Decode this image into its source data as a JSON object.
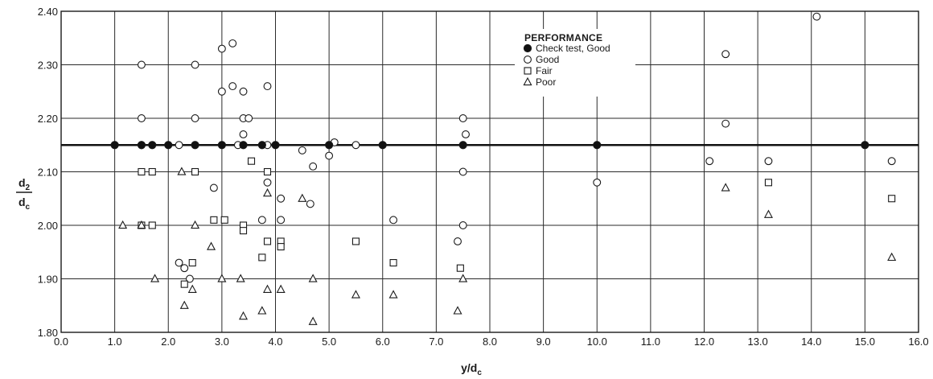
{
  "chart_data": {
    "type": "scatter",
    "xlabel": "y/d",
    "xlabel_sub": "c",
    "ylabel_top": "d",
    "ylabel_top_sub": "2",
    "ylabel_bottom": "d",
    "ylabel_bottom_sub": "c",
    "xlim": [
      0,
      16
    ],
    "ylim": [
      1.8,
      2.4
    ],
    "xticks": [
      "0.0",
      "1.0",
      "2.0",
      "3.0",
      "4.0",
      "5.0",
      "6.0",
      "7.0",
      "8.0",
      "9.0",
      "10.0",
      "11.0",
      "12.0",
      "13.0",
      "14.0",
      "15.0",
      "16.0"
    ],
    "yticks": [
      "1.80",
      "1.90",
      "2.00",
      "2.10",
      "2.20",
      "2.30",
      "2.40"
    ],
    "grid": true,
    "reference_line_y": 2.15,
    "legend": {
      "title": "PERFORMANCE",
      "placement": "top-center-right",
      "entries": [
        "Check test, Good",
        "Good",
        "Fair",
        "Poor"
      ]
    },
    "series": [
      {
        "name": "Check test, Good",
        "marker": "filled-circle",
        "points": [
          [
            1.0,
            2.15
          ],
          [
            1.5,
            2.15
          ],
          [
            1.7,
            2.15
          ],
          [
            2.0,
            2.15
          ],
          [
            2.5,
            2.15
          ],
          [
            3.0,
            2.15
          ],
          [
            3.4,
            2.15
          ],
          [
            3.75,
            2.15
          ],
          [
            4.0,
            2.15
          ],
          [
            5.0,
            2.15
          ],
          [
            6.0,
            2.15
          ],
          [
            7.5,
            2.15
          ],
          [
            10.0,
            2.15
          ],
          [
            15.0,
            2.15
          ]
        ]
      },
      {
        "name": "Good",
        "marker": "open-circle",
        "points": [
          [
            1.5,
            2.3
          ],
          [
            1.5,
            2.2
          ],
          [
            1.5,
            2.15
          ],
          [
            2.2,
            2.15
          ],
          [
            2.5,
            2.3
          ],
          [
            2.5,
            2.2
          ],
          [
            3.0,
            2.33
          ],
          [
            3.0,
            2.25
          ],
          [
            3.2,
            2.34
          ],
          [
            3.2,
            2.26
          ],
          [
            3.4,
            2.25
          ],
          [
            3.4,
            2.2
          ],
          [
            3.5,
            2.2
          ],
          [
            3.4,
            2.17
          ],
          [
            3.3,
            2.15
          ],
          [
            3.85,
            2.26
          ],
          [
            3.85,
            2.15
          ],
          [
            3.85,
            2.08
          ],
          [
            2.85,
            2.07
          ],
          [
            3.75,
            2.01
          ],
          [
            4.1,
            2.05
          ],
          [
            4.1,
            2.01
          ],
          [
            4.5,
            2.14
          ],
          [
            4.7,
            2.11
          ],
          [
            4.65,
            2.04
          ],
          [
            5.0,
            2.13
          ],
          [
            5.1,
            2.155
          ],
          [
            5.5,
            2.15
          ],
          [
            2.2,
            1.93
          ],
          [
            2.3,
            1.92
          ],
          [
            2.4,
            1.9
          ],
          [
            6.2,
            2.01
          ],
          [
            7.5,
            2.2
          ],
          [
            7.55,
            2.17
          ],
          [
            7.5,
            2.1
          ],
          [
            7.5,
            2.0
          ],
          [
            7.4,
            1.97
          ],
          [
            10.0,
            2.08
          ],
          [
            12.1,
            2.12
          ],
          [
            12.4,
            2.32
          ],
          [
            12.4,
            2.19
          ],
          [
            13.2,
            2.12
          ],
          [
            14.1,
            2.39
          ],
          [
            15.5,
            2.12
          ]
        ]
      },
      {
        "name": "Fair",
        "marker": "open-square",
        "points": [
          [
            1.5,
            2.1
          ],
          [
            1.7,
            2.1
          ],
          [
            1.5,
            2.0
          ],
          [
            1.7,
            2.0
          ],
          [
            2.5,
            2.1
          ],
          [
            2.85,
            2.01
          ],
          [
            3.05,
            2.01
          ],
          [
            3.4,
            2.0
          ],
          [
            3.4,
            1.99
          ],
          [
            3.55,
            2.12
          ],
          [
            3.85,
            2.1
          ],
          [
            3.85,
            1.97
          ],
          [
            3.75,
            1.94
          ],
          [
            4.1,
            1.97
          ],
          [
            4.1,
            1.96
          ],
          [
            2.3,
            1.89
          ],
          [
            2.45,
            1.93
          ],
          [
            5.5,
            1.97
          ],
          [
            6.2,
            1.93
          ],
          [
            7.45,
            1.92
          ],
          [
            13.2,
            2.08
          ],
          [
            15.5,
            2.05
          ]
        ]
      },
      {
        "name": "Poor",
        "marker": "open-triangle",
        "points": [
          [
            1.15,
            2.0
          ],
          [
            1.5,
            2.0
          ],
          [
            2.5,
            2.0
          ],
          [
            1.75,
            1.9
          ],
          [
            2.25,
            2.1
          ],
          [
            2.3,
            1.85
          ],
          [
            2.45,
            1.88
          ],
          [
            2.8,
            1.96
          ],
          [
            3.0,
            1.9
          ],
          [
            3.35,
            1.9
          ],
          [
            3.4,
            1.83
          ],
          [
            3.75,
            1.84
          ],
          [
            3.85,
            2.06
          ],
          [
            3.85,
            1.88
          ],
          [
            4.1,
            1.88
          ],
          [
            4.5,
            2.05
          ],
          [
            4.7,
            1.9
          ],
          [
            4.7,
            1.82
          ],
          [
            5.5,
            1.87
          ],
          [
            6.2,
            1.87
          ],
          [
            7.4,
            1.84
          ],
          [
            7.5,
            1.9
          ],
          [
            12.4,
            2.07
          ],
          [
            13.2,
            2.02
          ],
          [
            15.5,
            1.94
          ]
        ]
      }
    ]
  }
}
